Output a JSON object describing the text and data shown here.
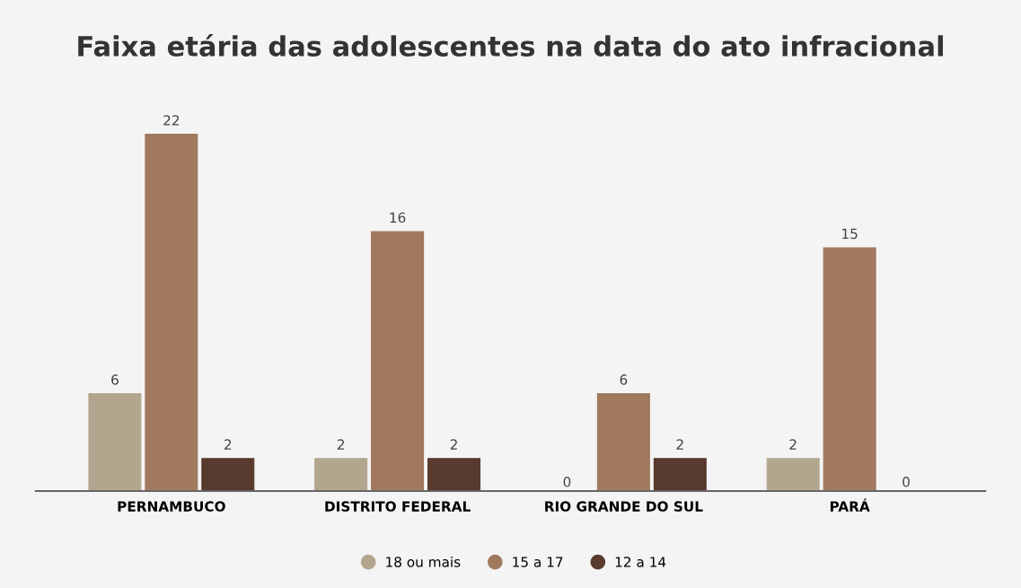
{
  "chart_data": {
    "type": "bar",
    "title": "Faixa etária das adolescentes na data do ato infracional",
    "categories": [
      "PERNAMBUCO",
      "DISTRITO FEDERAL",
      "RIO GRANDE DO SUL",
      "PARÁ"
    ],
    "series": [
      {
        "name": "18 ou mais",
        "color": "#b3a68e",
        "values": [
          6,
          2,
          0,
          2
        ]
      },
      {
        "name": "15 a 17",
        "color": "#a0795e",
        "values": [
          22,
          16,
          6,
          15
        ]
      },
      {
        "name": "12 a 14",
        "color": "#583a2e",
        "values": [
          2,
          2,
          2,
          0
        ]
      }
    ],
    "data_labels": true,
    "grid": false,
    "legend": "bottom"
  }
}
